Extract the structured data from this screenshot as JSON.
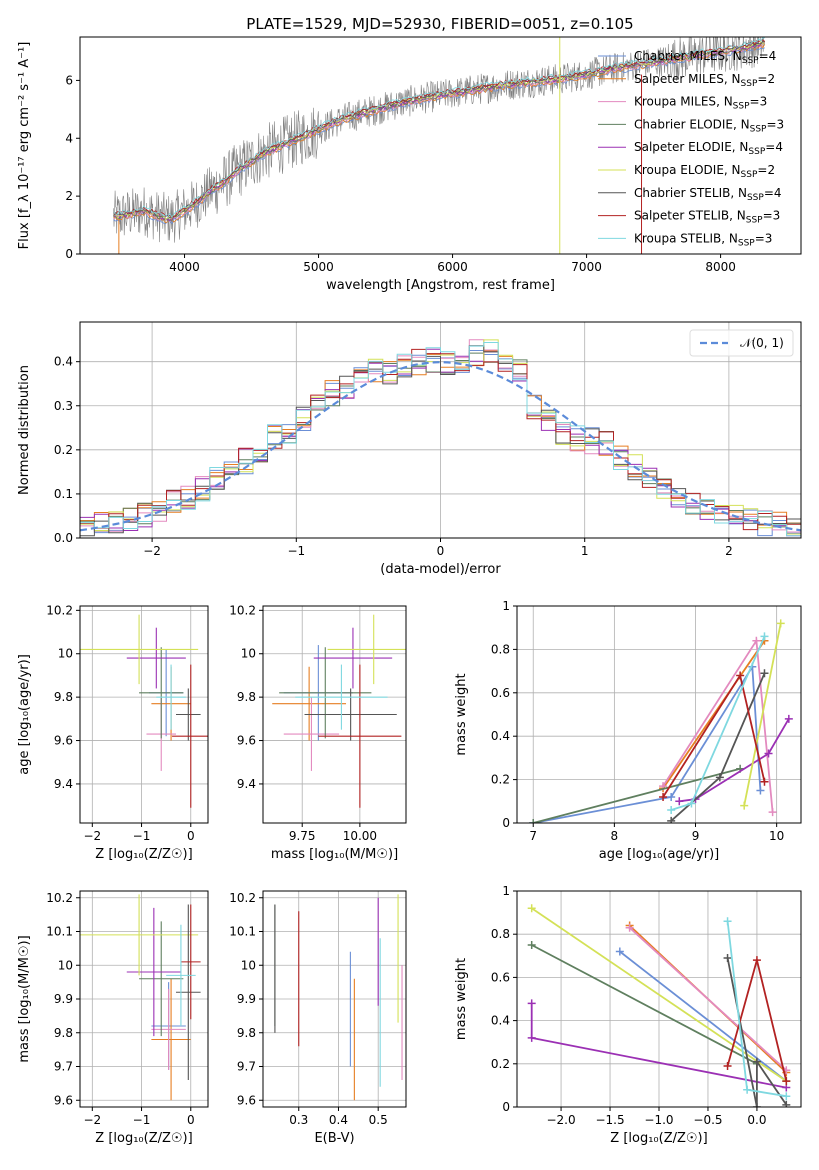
{
  "title": "PLATE=1529, MJD=52930, FIBERID=0051, z=0.105",
  "colors": {
    "Chabrier MILES": "#6b8fd6",
    "Salpeter MILES": "#e67e22",
    "Kroupa MILES": "#e38abf",
    "Chabrier ELODIE": "#5f7f5f",
    "Salpeter ELODIE": "#9b30b4",
    "Kroupa ELODIE": "#d4e157",
    "Chabrier STELIB": "#555555",
    "Salpeter STELIB": "#b22222",
    "Kroupa STELIB": "#7fd8e0",
    "spectrum": "#808080",
    "normal": "#5b8bd9",
    "grid": "#b0b0b0"
  },
  "chart_data": [
    {
      "id": "spectrum",
      "type": "line",
      "title": "PLATE=1529, MJD=52930, FIBERID=0051, z=0.105",
      "xlabel": "wavelength [Angstrom, rest frame]",
      "ylabel": "Flux [f_λ 10⁻¹⁷ erg cm⁻² s⁻¹ A⁻¹]",
      "xlim": [
        3220,
        8600
      ],
      "ylim": [
        0,
        7.5
      ],
      "xticks": [
        4000,
        5000,
        6000,
        7000,
        8000
      ],
      "yticks": [
        0,
        2,
        4,
        6
      ],
      "grid": false,
      "legend_position": "top-right",
      "legend": [
        {
          "name": "Chabrier MILES",
          "nssp": "4"
        },
        {
          "name": "Salpeter MILES",
          "nssp": "2"
        },
        {
          "name": "Kroupa MILES",
          "nssp": "3"
        },
        {
          "name": "Chabrier ELODIE",
          "nssp": "3"
        },
        {
          "name": "Salpeter ELODIE",
          "nssp": "4"
        },
        {
          "name": "Kroupa ELODIE",
          "nssp": "2"
        },
        {
          "name": "Chabrier STELIB",
          "nssp": "4"
        },
        {
          "name": "Salpeter STELIB",
          "nssp": "3"
        },
        {
          "name": "Kroupa STELIB",
          "nssp": "3"
        }
      ],
      "model_continuum": {
        "x": [
          3500,
          3600,
          3700,
          3800,
          3900,
          4000,
          4100,
          4200,
          4300,
          4400,
          4500,
          4600,
          4800,
          5000,
          5200,
          5400,
          5600,
          5800,
          6000,
          6200,
          6400,
          6600,
          6800,
          7000,
          7200,
          7400,
          7600,
          7800,
          8000,
          8200,
          8330
        ],
        "y": [
          1.3,
          1.4,
          1.5,
          1.3,
          1.2,
          1.5,
          1.8,
          2.2,
          2.5,
          2.9,
          3.2,
          3.5,
          3.9,
          4.3,
          4.7,
          4.95,
          5.2,
          5.4,
          5.55,
          5.7,
          5.85,
          5.95,
          6.05,
          6.2,
          6.4,
          6.55,
          6.7,
          6.85,
          7.0,
          7.15,
          7.3
        ]
      }
    },
    {
      "id": "residuals",
      "type": "histogram",
      "xlabel": "(data-model)/error",
      "ylabel": "Normed distribution",
      "xlim": [
        -2.5,
        2.5
      ],
      "ylim": [
        0,
        0.49
      ],
      "xticks": [
        -2,
        -1,
        0,
        1,
        2
      ],
      "yticks": [
        0.0,
        0.1,
        0.2,
        0.3,
        0.4
      ],
      "grid": true,
      "legend_position": "top-right",
      "reference_label": "𝒩(0, 1)",
      "bin_edges": [
        -2.5,
        -2.4,
        -2.3,
        -2.2,
        -2.1,
        -2.0,
        -1.9,
        -1.8,
        -1.7,
        -1.6,
        -1.5,
        -1.4,
        -1.3,
        -1.2,
        -1.1,
        -1.0,
        -0.9,
        -0.8,
        -0.7,
        -0.6,
        -0.5,
        -0.4,
        -0.3,
        -0.2,
        -0.1,
        0.0,
        0.1,
        0.2,
        0.3,
        0.4,
        0.5,
        0.6,
        0.7,
        0.8,
        0.9,
        1.0,
        1.1,
        1.2,
        1.3,
        1.4,
        1.5,
        1.6,
        1.7,
        1.8,
        1.9,
        2.0,
        2.1,
        2.2,
        2.3,
        2.4,
        2.5
      ],
      "mean_counts": [
        0.025,
        0.035,
        0.04,
        0.045,
        0.055,
        0.065,
        0.08,
        0.09,
        0.11,
        0.13,
        0.16,
        0.175,
        0.195,
        0.23,
        0.245,
        0.27,
        0.3,
        0.33,
        0.345,
        0.36,
        0.38,
        0.375,
        0.39,
        0.4,
        0.405,
        0.395,
        0.39,
        0.42,
        0.425,
        0.4,
        0.385,
        0.3,
        0.27,
        0.24,
        0.225,
        0.22,
        0.215,
        0.18,
        0.16,
        0.13,
        0.115,
        0.095,
        0.08,
        0.07,
        0.06,
        0.05,
        0.04,
        0.035,
        0.03,
        0.02
      ]
    },
    {
      "id": "age-vs-Z",
      "type": "errorbar",
      "xlabel": "Z [log₁₀(Z/Z☉)]",
      "ylabel": "age  [log₁₀(age/yr)]",
      "xlim": [
        -2.25,
        0.35
      ],
      "ylim": [
        9.22,
        10.22
      ],
      "xticks": [
        -2,
        -1,
        0
      ],
      "yticks": [
        9.4,
        9.6,
        9.8,
        10.0,
        10.2
      ],
      "grid": true,
      "points": [
        {
          "model": "Chabrier MILES",
          "x": -0.5,
          "xerr": 0.35,
          "y": 9.82,
          "yerr": 0.2
        },
        {
          "model": "Salpeter MILES",
          "x": -0.4,
          "xerr": 0.4,
          "y": 9.77,
          "yerr": 0.17
        },
        {
          "model": "Kroupa MILES",
          "x": -0.6,
          "xerr": 0.3,
          "y": 9.63,
          "yerr": 0.17
        },
        {
          "model": "Chabrier ELODIE",
          "x": -0.6,
          "xerr": 0.45,
          "y": 9.82,
          "yerr": 0.21
        },
        {
          "model": "Salpeter ELODIE",
          "x": -0.7,
          "xerr": 0.6,
          "y": 9.98,
          "yerr": 0.14
        },
        {
          "model": "Kroupa ELODIE",
          "x": -1.05,
          "xerr": 1.2,
          "y": 10.02,
          "yerr": 0.16
        },
        {
          "model": "Chabrier STELIB",
          "x": -0.05,
          "xerr": 0.25,
          "y": 9.72,
          "yerr": 0.12
        },
        {
          "model": "Salpeter STELIB",
          "x": 0.0,
          "xerr": 0.38,
          "y": 9.62,
          "yerr": 0.33
        },
        {
          "model": "Kroupa STELIB",
          "x": -0.4,
          "xerr": 0.3,
          "y": 9.8,
          "yerr": 0.15
        }
      ]
    },
    {
      "id": "age-vs-mass",
      "type": "errorbar",
      "xlabel": "mass [log₁₀(M/M☉)]",
      "ylabel": "",
      "xlim": [
        9.58,
        10.2
      ],
      "ylim": [
        9.22,
        10.22
      ],
      "xticks": [
        9.75,
        10.0
      ],
      "xticklabels": [
        "9.75",
        "10.00"
      ],
      "yticks": [
        9.4,
        9.6,
        9.8,
        10.0,
        10.2
      ],
      "grid": true,
      "points": [
        {
          "model": "Chabrier MILES",
          "x": 9.82,
          "xerr": 0.15,
          "y": 9.82,
          "yerr": 0.22
        },
        {
          "model": "Salpeter MILES",
          "x": 9.78,
          "xerr": 0.16,
          "y": 9.77,
          "yerr": 0.17
        },
        {
          "model": "Kroupa MILES",
          "x": 9.79,
          "xerr": 0.12,
          "y": 9.63,
          "yerr": 0.17
        },
        {
          "model": "Chabrier ELODIE",
          "x": 9.85,
          "xerr": 0.2,
          "y": 9.82,
          "yerr": 0.21
        },
        {
          "model": "Salpeter ELODIE",
          "x": 9.97,
          "xerr": 0.17,
          "y": 9.98,
          "yerr": 0.14
        },
        {
          "model": "Kroupa ELODIE",
          "x": 10.06,
          "xerr": 0.2,
          "y": 10.02,
          "yerr": 0.16
        },
        {
          "model": "Chabrier STELIB",
          "x": 9.96,
          "xerr": 0.2,
          "y": 9.72,
          "yerr": 0.12
        },
        {
          "model": "Salpeter STELIB",
          "x": 10.0,
          "xerr": 0.18,
          "y": 9.62,
          "yerr": 0.33
        },
        {
          "model": "Kroupa STELIB",
          "x": 9.92,
          "xerr": 0.2,
          "y": 9.8,
          "yerr": 0.15
        }
      ]
    },
    {
      "id": "massweight-vs-age",
      "type": "line",
      "xlabel": "age  [log₁₀(age/yr)]",
      "ylabel": "mass weight",
      "xlim": [
        6.8,
        10.3
      ],
      "ylim": [
        0,
        1.0
      ],
      "xticks": [
        7,
        8,
        9,
        10
      ],
      "yticks": [
        0.0,
        0.2,
        0.4,
        0.6,
        0.8,
        1.0
      ],
      "grid": true,
      "series": [
        {
          "model": "Chabrier MILES",
          "x": [
            7.0,
            8.7,
            9.7,
            9.8
          ],
          "y": [
            0.0,
            0.12,
            0.72,
            0.15
          ]
        },
        {
          "model": "Salpeter MILES",
          "x": [
            8.6,
            9.85
          ],
          "y": [
            0.16,
            0.84
          ]
        },
        {
          "model": "Kroupa MILES",
          "x": [
            8.6,
            9.75,
            9.95
          ],
          "y": [
            0.17,
            0.84,
            0.05
          ]
        },
        {
          "model": "Chabrier ELODIE",
          "x": [
            7.0,
            9.55
          ],
          "y": [
            0.0,
            0.25
          ]
        },
        {
          "model": "Salpeter ELODIE",
          "x": [
            8.8,
            9.0,
            9.9,
            10.15
          ],
          "y": [
            0.1,
            0.11,
            0.32,
            0.48
          ]
        },
        {
          "model": "Kroupa ELODIE",
          "x": [
            9.6,
            10.05
          ],
          "y": [
            0.08,
            0.92
          ]
        },
        {
          "model": "Chabrier STELIB",
          "x": [
            8.7,
            9.3,
            9.85
          ],
          "y": [
            0.01,
            0.21,
            0.69
          ]
        },
        {
          "model": "Salpeter STELIB",
          "x": [
            8.6,
            9.55,
            9.85
          ],
          "y": [
            0.12,
            0.68,
            0.19
          ]
        },
        {
          "model": "Kroupa STELIB",
          "x": [
            8.7,
            8.95,
            9.85
          ],
          "y": [
            0.06,
            0.09,
            0.86
          ]
        }
      ]
    },
    {
      "id": "mass-vs-Z",
      "type": "errorbar",
      "xlabel": "Z [log₁₀(Z/Z☉)]",
      "ylabel": "mass [log₁₀(M/M☉)]",
      "xlim": [
        -2.25,
        0.35
      ],
      "ylim": [
        9.58,
        10.22
      ],
      "xticks": [
        -2,
        -1,
        0
      ],
      "yticks": [
        9.6,
        9.7,
        9.8,
        9.9,
        10.0,
        10.1,
        10.2
      ],
      "grid": true,
      "points": [
        {
          "model": "Chabrier MILES",
          "x": -0.45,
          "xerr": 0.35,
          "y": 9.82,
          "yerr": 0.13
        },
        {
          "model": "Salpeter MILES",
          "x": -0.4,
          "xerr": 0.4,
          "y": 9.78,
          "yerr": 0.18
        },
        {
          "model": "Kroupa MILES",
          "x": -0.45,
          "xerr": 0.35,
          "y": 9.81,
          "yerr": 0.12
        },
        {
          "model": "Chabrier ELODIE",
          "x": -0.6,
          "xerr": 0.45,
          "y": 9.96,
          "yerr": 0.17
        },
        {
          "model": "Salpeter ELODIE",
          "x": -0.75,
          "xerr": 0.55,
          "y": 9.98,
          "yerr": 0.19
        },
        {
          "model": "Kroupa ELODIE",
          "x": -1.05,
          "xerr": 1.2,
          "y": 10.09,
          "yerr": 0.12
        },
        {
          "model": "Chabrier STELIB",
          "x": -0.05,
          "xerr": 0.25,
          "y": 9.92,
          "yerr": 0.26
        },
        {
          "model": "Salpeter STELIB",
          "x": 0.0,
          "xerr": 0.2,
          "y": 10.01,
          "yerr": 0.17
        },
        {
          "model": "Kroupa STELIB",
          "x": -0.2,
          "xerr": 0.3,
          "y": 9.97,
          "yerr": 0.15
        }
      ]
    },
    {
      "id": "mass-vs-ebv",
      "type": "errorbar",
      "xlabel": "E(B-V)",
      "ylabel": "",
      "xlim": [
        0.21,
        0.57
      ],
      "ylim": [
        9.58,
        10.22
      ],
      "xticks": [
        0.3,
        0.4,
        0.5
      ],
      "yticks": [
        9.6,
        9.7,
        9.8,
        9.9,
        10.0,
        10.1,
        10.2
      ],
      "grid": true,
      "points": [
        {
          "model": "Chabrier MILES",
          "x": 0.43,
          "xerr": 0.0,
          "y": 9.87,
          "yerr": 0.17
        },
        {
          "model": "Salpeter MILES",
          "x": 0.44,
          "xerr": 0.0,
          "y": 9.78,
          "yerr": 0.18
        },
        {
          "model": "Kroupa MILES",
          "x": 0.56,
          "xerr": 0.0,
          "y": 9.83,
          "yerr": 0.17
        },
        {
          "model": "Chabrier ELODIE",
          "x": 0.24,
          "xerr": 0.0,
          "y": 10.0,
          "yerr": 0.18
        },
        {
          "model": "Salpeter ELODIE",
          "x": 0.5,
          "xerr": 0.0,
          "y": 10.04,
          "yerr": 0.16
        },
        {
          "model": "Kroupa ELODIE",
          "x": 0.55,
          "xerr": 0.0,
          "y": 10.02,
          "yerr": 0.19
        },
        {
          "model": "Chabrier STELIB",
          "x": 0.24,
          "xerr": 0.0,
          "y": 9.99,
          "yerr": 0.19
        },
        {
          "model": "Salpeter STELIB",
          "x": 0.3,
          "xerr": 0.0,
          "y": 9.96,
          "yerr": 0.2
        },
        {
          "model": "Kroupa STELIB",
          "x": 0.505,
          "xerr": 0.0,
          "y": 9.86,
          "yerr": 0.22
        }
      ]
    },
    {
      "id": "massweight-vs-Z",
      "type": "line",
      "xlabel": "Z [log₁₀(Z/Z☉)]",
      "ylabel": "mass weight",
      "xlim": [
        -2.45,
        0.45
      ],
      "ylim": [
        0,
        1.0
      ],
      "xticks": [
        -2.0,
        -1.5,
        -1.0,
        -0.5,
        0.0
      ],
      "xticklabels": [
        "−2.0",
        "−1.5",
        "−1.0",
        "−0.5",
        "0.0"
      ],
      "yticks": [
        0.0,
        0.2,
        0.4,
        0.6,
        0.8,
        1.0
      ],
      "grid": true,
      "series": [
        {
          "model": "Chabrier MILES",
          "x": [
            -1.4,
            0.3
          ],
          "y": [
            0.72,
            0.12
          ]
        },
        {
          "model": "Salpeter MILES",
          "x": [
            -1.3,
            0.3
          ],
          "y": [
            0.84,
            0.16
          ]
        },
        {
          "model": "Kroupa MILES",
          "x": [
            -1.3,
            0.3
          ],
          "y": [
            0.83,
            0.17
          ]
        },
        {
          "model": "Chabrier ELODIE",
          "x": [
            -2.3,
            0.0
          ],
          "y": [
            0.75,
            0.2
          ]
        },
        {
          "model": "Salpeter ELODIE",
          "x": [
            -2.3,
            -2.3,
            0.3
          ],
          "y": [
            0.48,
            0.32,
            0.09
          ]
        },
        {
          "model": "Kroupa ELODIE",
          "x": [
            -2.3,
            0.3
          ],
          "y": [
            0.92,
            0.12
          ]
        },
        {
          "model": "Chabrier STELIB",
          "x": [
            -0.3,
            0.0,
            0.0,
            0.3
          ],
          "y": [
            0.69,
            0.0,
            0.21,
            0.01
          ]
        },
        {
          "model": "Salpeter STELIB",
          "x": [
            -0.3,
            0.0,
            0.3
          ],
          "y": [
            0.19,
            0.68,
            0.12
          ]
        },
        {
          "model": "Kroupa STELIB",
          "x": [
            -0.3,
            -0.1,
            0.3
          ],
          "y": [
            0.86,
            0.08,
            0.05
          ]
        }
      ]
    }
  ]
}
